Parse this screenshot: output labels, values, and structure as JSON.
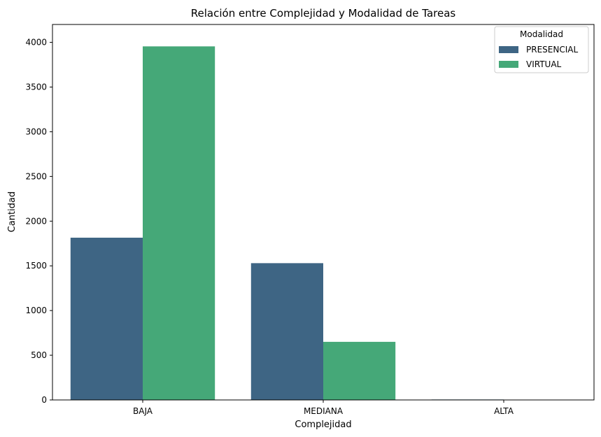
{
  "chart_data": {
    "type": "bar",
    "title": "Relación entre Complejidad y Modalidad de Tareas",
    "xlabel": "Complejidad",
    "ylabel": "Cantidad",
    "categories": [
      "BAJA",
      "MEDIANA",
      "ALTA"
    ],
    "series": [
      {
        "name": "PRESENCIAL",
        "color": "#3e6584",
        "values": [
          1815,
          1530,
          5
        ]
      },
      {
        "name": "VIRTUAL",
        "color": "#45a878",
        "values": [
          3955,
          650,
          3
        ]
      }
    ],
    "ylim": [
      0,
      4200
    ],
    "yticks": [
      0,
      500,
      1000,
      1500,
      2000,
      2500,
      3000,
      3500,
      4000
    ],
    "legend": {
      "title": "Modalidad",
      "position": "top-right"
    },
    "grid": false
  }
}
